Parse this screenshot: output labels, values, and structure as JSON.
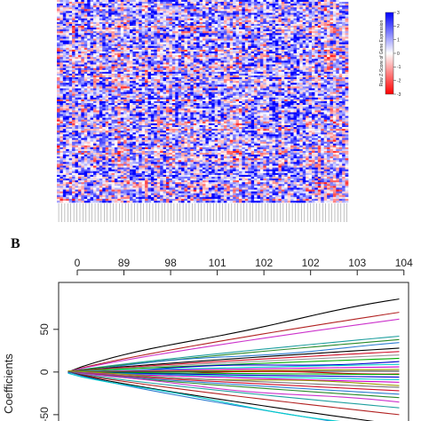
{
  "panel_b_label": "B",
  "chart_data": [
    {
      "type": "heatmap",
      "title": "",
      "rows": 110,
      "cols": 96,
      "colorscale": {
        "low": "#ff0000",
        "mid": "#ffffff",
        "high": "#0000ff"
      },
      "legend": {
        "ticks": [
          3,
          2,
          1,
          0,
          -1,
          -2,
          -3
        ],
        "title": "Row Z-Score of Gene Expression",
        "placement": "right"
      }
    },
    {
      "type": "line",
      "title": "",
      "top_axis_ticks": [
        {
          "x": -8,
          "label": "0"
        },
        {
          "x": -7,
          "label": "89"
        },
        {
          "x": -6,
          "label": "98"
        },
        {
          "x": -5,
          "label": "101"
        },
        {
          "x": -4,
          "label": "102"
        },
        {
          "x": -3,
          "label": "102"
        },
        {
          "x": -2,
          "label": "103"
        },
        {
          "x": -1,
          "label": "104"
        }
      ],
      "xlim": [
        -8.4,
        -0.9
      ],
      "ylabel": "Coefficients",
      "ylim": [
        -72,
        105
      ],
      "y_ticks": [
        {
          "value": 50,
          "label": "50"
        },
        {
          "value": 0,
          "label": "0"
        },
        {
          "value": -50,
          "label": "-50"
        }
      ],
      "x": [
        -8.2,
        -1.1
      ],
      "series": [
        {
          "color": "#000000",
          "values": [
            0,
            85
          ]
        },
        {
          "color": "#b22222",
          "values": [
            0,
            70
          ]
        },
        {
          "color": "#cc33cc",
          "values": [
            0,
            62
          ]
        },
        {
          "color": "#1f9f9f",
          "values": [
            0,
            42
          ]
        },
        {
          "color": "#2a8a2a",
          "values": [
            0,
            38
          ]
        },
        {
          "color": "#2e7dd1",
          "values": [
            0,
            33
          ]
        },
        {
          "color": "#000000",
          "values": [
            0,
            28
          ]
        },
        {
          "color": "#d0102a",
          "values": [
            0,
            24
          ]
        },
        {
          "color": "#999999",
          "values": [
            0,
            20
          ]
        },
        {
          "color": "#00aa00",
          "values": [
            0,
            16
          ]
        },
        {
          "color": "#0000cc",
          "values": [
            0,
            12
          ]
        },
        {
          "color": "#00cccc",
          "values": [
            0,
            9
          ]
        },
        {
          "color": "#cc00cc",
          "values": [
            0,
            6
          ]
        },
        {
          "color": "#999900",
          "values": [
            0,
            3
          ]
        },
        {
          "color": "#444444",
          "values": [
            0,
            1
          ]
        },
        {
          "color": "#cc0000",
          "values": [
            0,
            -1
          ]
        },
        {
          "color": "#00aa00",
          "values": [
            0,
            -3
          ]
        },
        {
          "color": "#0000cc",
          "values": [
            0,
            -6
          ]
        },
        {
          "color": "#00cccc",
          "values": [
            0,
            -9
          ]
        },
        {
          "color": "#cc00cc",
          "values": [
            0,
            -12
          ]
        },
        {
          "color": "#999900",
          "values": [
            0,
            -15
          ]
        },
        {
          "color": "#777777",
          "values": [
            0,
            -18
          ]
        },
        {
          "color": "#d0102a",
          "values": [
            0,
            -22
          ]
        },
        {
          "color": "#2e7dd1",
          "values": [
            0,
            -26
          ]
        },
        {
          "color": "#2a8a2a",
          "values": [
            0,
            -30
          ]
        },
        {
          "color": "#cc33cc",
          "values": [
            0,
            -36
          ]
        },
        {
          "color": "#1f9f9f",
          "values": [
            0,
            -42
          ]
        },
        {
          "color": "#b22222",
          "values": [
            0,
            -50
          ]
        },
        {
          "color": "#000000",
          "values": [
            0,
            -62
          ]
        },
        {
          "color": "#2e7dd1",
          "values": [
            0,
            -70
          ]
        },
        {
          "color": "#00cccc",
          "values": [
            0,
            -68
          ]
        }
      ]
    }
  ]
}
